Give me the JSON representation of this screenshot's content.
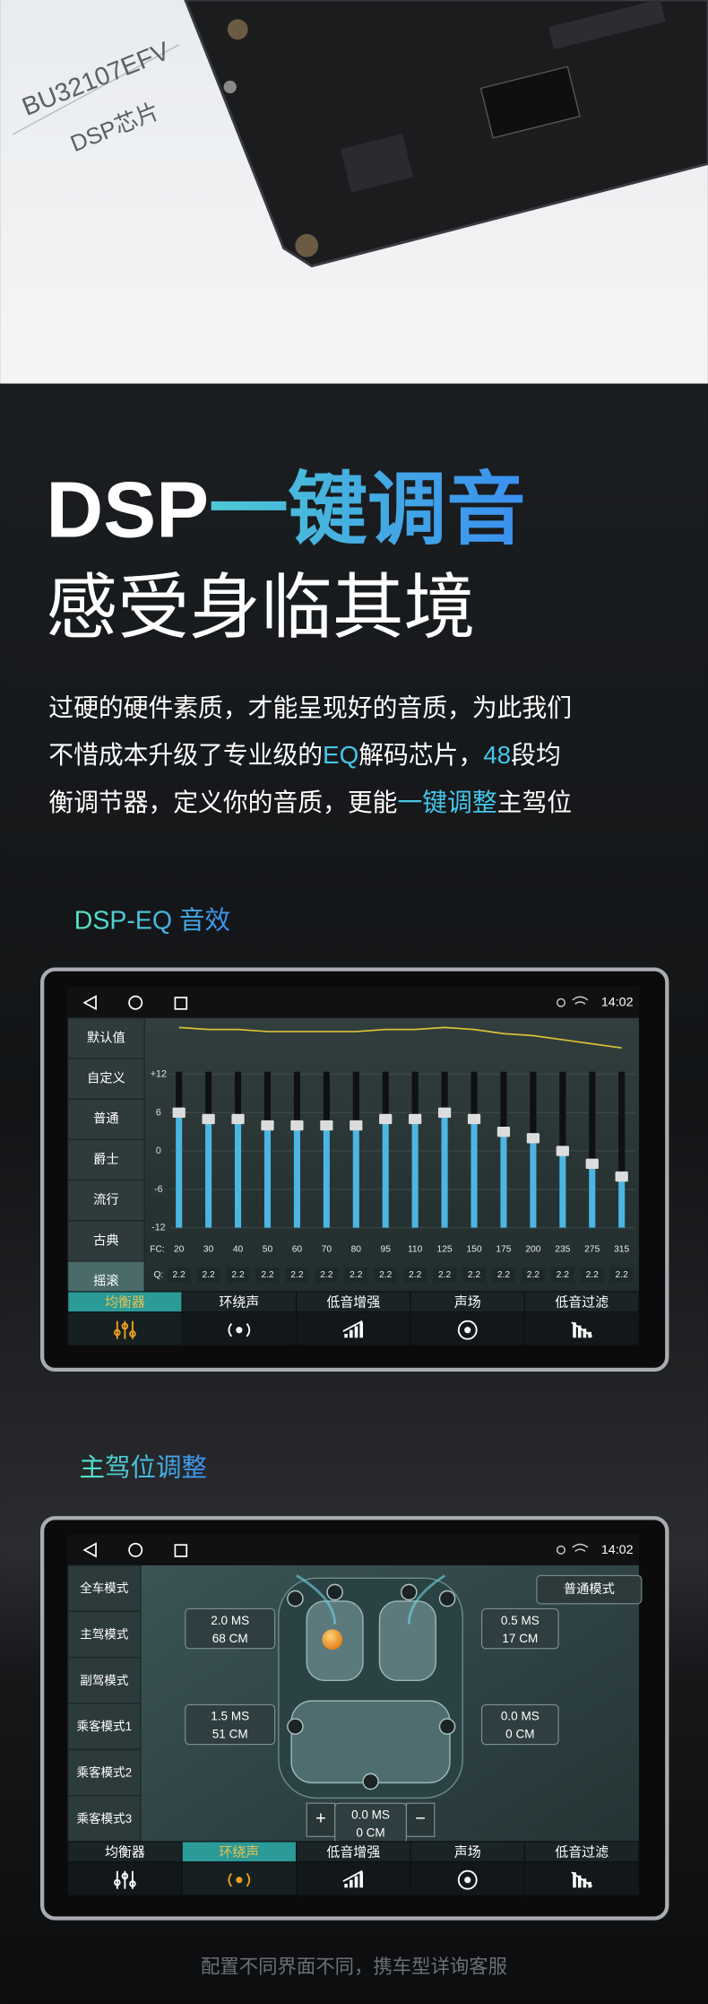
{
  "board": {
    "chip_model": "BU32107EFV",
    "chip_label": "DSP芯片"
  },
  "headline": {
    "white": "DSP",
    "accent": "一键调音",
    "line2": "感受身临其境"
  },
  "intro": {
    "lines": [
      [
        "过硬的硬件素质，才能呈现好的音质，为此我们"
      ],
      [
        "不惜成本升级了专业级的",
        "EQ",
        "解码芯片，",
        "48",
        "段均"
      ],
      [
        "衡调节器，定义你的音质，更能",
        "一键调整",
        "主驾位"
      ]
    ]
  },
  "eq_section": {
    "title": "DSP-EQ 音效",
    "screen": {
      "time": "14:02",
      "presets": [
        "默认值",
        "自定义",
        "普通",
        "爵士",
        "流行",
        "古典",
        "摇滚"
      ],
      "ylim": [
        -12,
        12
      ],
      "yticks": [
        {
          "value": 12,
          "label": "+12"
        },
        6,
        0,
        -6,
        -12
      ],
      "fc_label": "FC:",
      "fc": [
        20,
        30,
        40,
        50,
        60,
        70,
        80,
        95,
        110,
        125,
        150,
        175,
        200,
        235,
        275,
        315
      ],
      "q_label": "Q:",
      "q": [
        2.2,
        2.2,
        2.2,
        2.2,
        2.2,
        2.2,
        2.2,
        2.2,
        2.2,
        2.2,
        2.2,
        2.2,
        2.2,
        2.2,
        2.2,
        2.2
      ],
      "gains": [
        6,
        5,
        5,
        4,
        4,
        4,
        4,
        5,
        5,
        6,
        5,
        3,
        2,
        0,
        -2,
        -4
      ],
      "tabs": [
        "均衡器",
        "环绕声",
        "低音增强",
        "声场",
        "低音过滤"
      ]
    }
  },
  "seat_section": {
    "title": "主驾位调整",
    "screen": {
      "time": "14:02",
      "modes": [
        "全车模式",
        "主驾模式",
        "副驾模式",
        "乘客模式1",
        "乘客模式2",
        "乘客模式3"
      ],
      "mode_button": "普通模式",
      "delays": [
        {
          "time": "2.0 MS",
          "distance": "68 CM"
        },
        {
          "time": "0.5 MS",
          "distance": "17 CM"
        },
        {
          "time": "1.5 MS",
          "distance": "51 CM"
        },
        {
          "time": "0.0 MS",
          "distance": "0 CM"
        },
        {
          "time": "0.0 MS",
          "distance": "0 CM"
        }
      ],
      "plus": "+",
      "minus": "−",
      "tabs": [
        "均衡器",
        "环绕声",
        "低音增强",
        "声场",
        "低音过滤"
      ]
    }
  },
  "footer": "配置不同界面不同，携车型详询客服"
}
